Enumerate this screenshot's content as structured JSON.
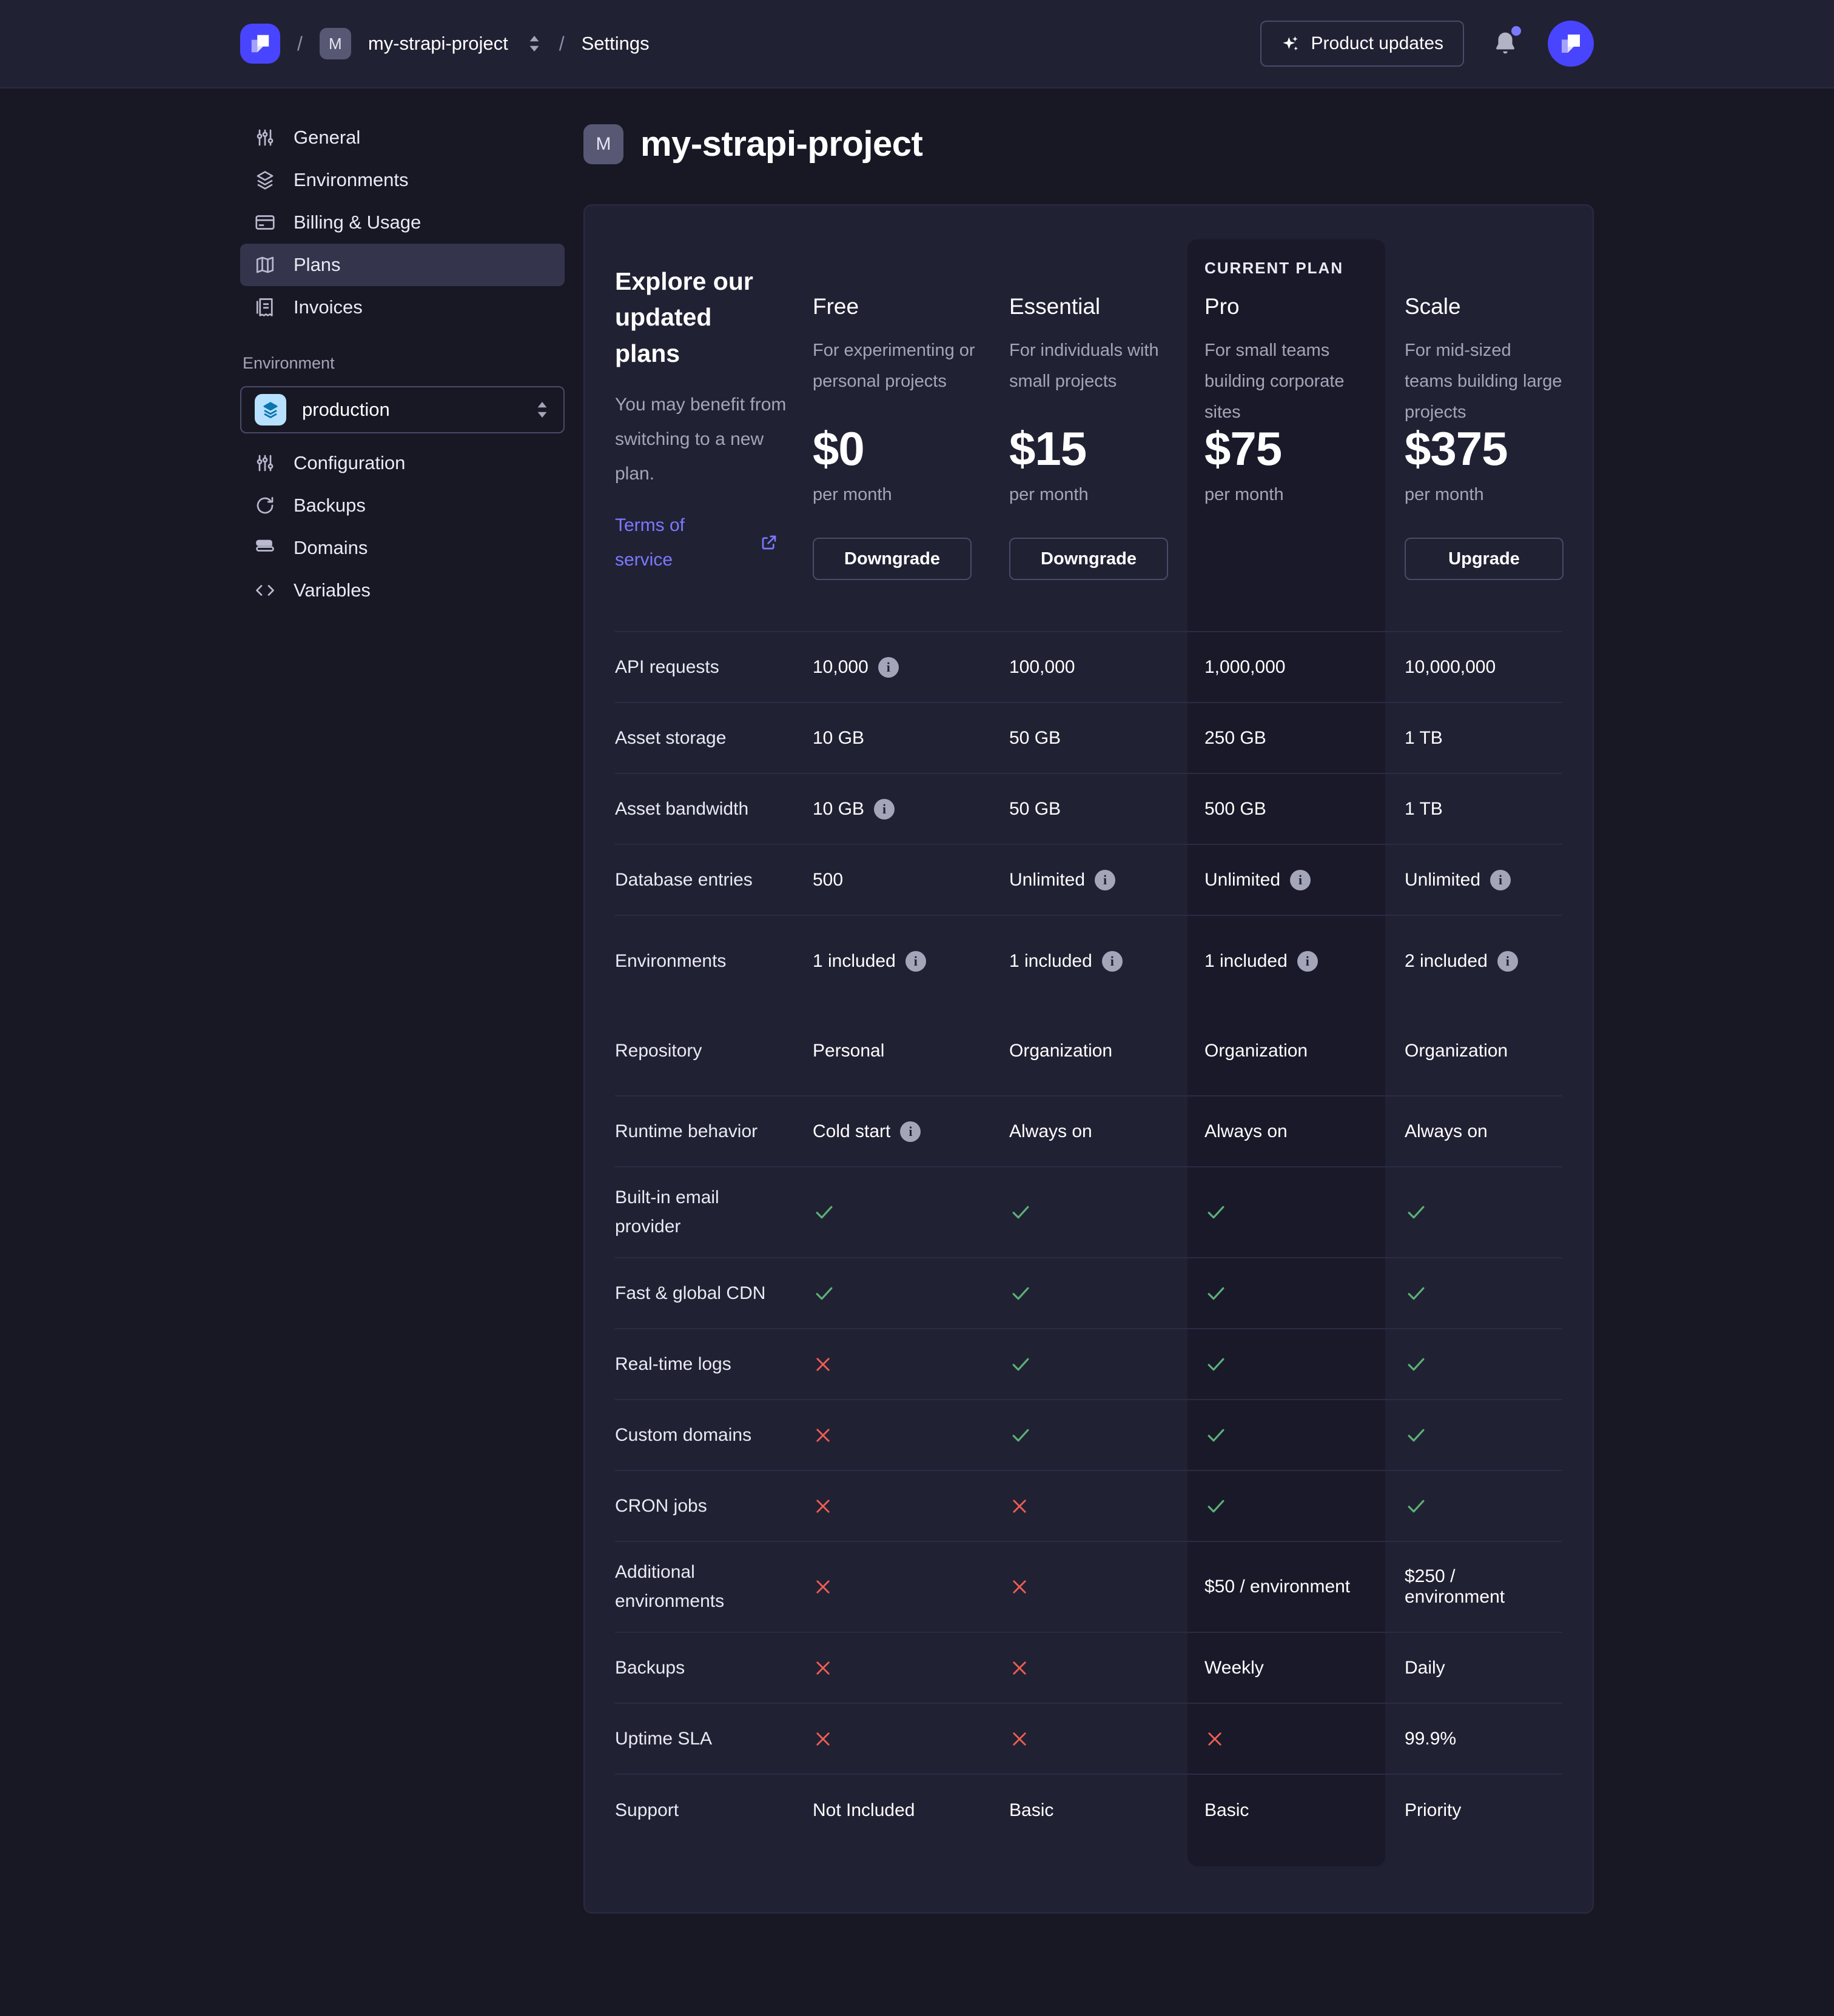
{
  "topbar": {
    "breadcrumb": {
      "separator": "/",
      "project_initial": "M",
      "project": "my-strapi-project",
      "section": "Settings"
    },
    "product_updates_label": "Product updates"
  },
  "sidebar": {
    "items": [
      {
        "label": "General",
        "icon": "sliders"
      },
      {
        "label": "Environments",
        "icon": "layers"
      },
      {
        "label": "Billing & Usage",
        "icon": "credit-card"
      },
      {
        "label": "Plans",
        "icon": "map",
        "selected": true
      },
      {
        "label": "Invoices",
        "icon": "receipt"
      }
    ],
    "environment_section_label": "Environment",
    "environment_value": "production",
    "environment_items": [
      {
        "label": "Configuration",
        "icon": "sliders"
      },
      {
        "label": "Backups",
        "icon": "refresh"
      },
      {
        "label": "Domains",
        "icon": "drawer"
      },
      {
        "label": "Variables",
        "icon": "code"
      }
    ]
  },
  "page": {
    "title_initial": "M",
    "title": "my-strapi-project"
  },
  "plans_intro": {
    "heading": "Explore our updated plans",
    "body": "You may benefit from switching to a new plan.",
    "link_label": "Terms of service"
  },
  "plans": [
    {
      "name": "Free",
      "desc": "For experimenting or personal projects",
      "price": "$0",
      "period": "per month",
      "button": "Downgrade"
    },
    {
      "name": "Essential",
      "desc": "For individuals with small projects",
      "price": "$15",
      "period": "per month",
      "button": "Downgrade"
    },
    {
      "name": "Pro",
      "desc": "For small teams building corporate sites",
      "price": "$75",
      "period": "per month",
      "badge": "CURRENT PLAN",
      "current": true
    },
    {
      "name": "Scale",
      "desc": "For mid-sized teams building large projects",
      "price": "$375",
      "period": "per month",
      "button": "Upgrade"
    }
  ],
  "table": {
    "rows": [
      {
        "label": "API requests",
        "cells": [
          {
            "t": "10,000",
            "i": true
          },
          {
            "t": "100,000"
          },
          {
            "t": "1,000,000"
          },
          {
            "t": "10,000,000"
          }
        ]
      },
      {
        "label": "Asset storage",
        "cells": [
          {
            "t": "10 GB"
          },
          {
            "t": "50 GB"
          },
          {
            "t": "250 GB"
          },
          {
            "t": "1 TB"
          }
        ]
      },
      {
        "label": "Asset bandwidth",
        "cells": [
          {
            "t": "10 GB",
            "i": true
          },
          {
            "t": "50 GB"
          },
          {
            "t": "500 GB"
          },
          {
            "t": "1 TB"
          }
        ]
      },
      {
        "label": "Database entries",
        "cells": [
          {
            "t": "500"
          },
          {
            "t": "Unlimited",
            "i": true
          },
          {
            "t": "Unlimited",
            "i": true
          },
          {
            "t": "Unlimited",
            "i": true
          }
        ]
      },
      {
        "label": "Environments",
        "cls": "tall nodiv",
        "cells": [
          {
            "t": "1 included",
            "i": true
          },
          {
            "t": "1 included",
            "i": true
          },
          {
            "t": "1 included",
            "i": true
          },
          {
            "t": "2 included",
            "i": true
          }
        ]
      },
      {
        "label": "Repository",
        "cls": "xtall",
        "cells": [
          {
            "t": "Personal"
          },
          {
            "t": "Organization"
          },
          {
            "t": "Organization"
          },
          {
            "t": "Organization"
          }
        ]
      },
      {
        "label": "Runtime behavior",
        "cells": [
          {
            "t": "Cold start",
            "i": true
          },
          {
            "t": "Always on"
          },
          {
            "t": "Always on"
          },
          {
            "t": "Always on"
          }
        ]
      },
      {
        "label": "Built-in email provider",
        "cls": "tall",
        "cells": [
          {
            "c": true
          },
          {
            "c": true
          },
          {
            "c": true
          },
          {
            "c": true
          }
        ]
      },
      {
        "label": "Fast & global CDN",
        "cells": [
          {
            "c": true
          },
          {
            "c": true
          },
          {
            "c": true
          },
          {
            "c": true
          }
        ]
      },
      {
        "label": "Real-time logs",
        "cells": [
          {
            "x": true
          },
          {
            "c": true
          },
          {
            "c": true
          },
          {
            "c": true
          }
        ]
      },
      {
        "label": "Custom domains",
        "cells": [
          {
            "x": true
          },
          {
            "c": true
          },
          {
            "c": true
          },
          {
            "c": true
          }
        ]
      },
      {
        "label": "CRON jobs",
        "cells": [
          {
            "x": true
          },
          {
            "x": true
          },
          {
            "c": true
          },
          {
            "c": true
          }
        ]
      },
      {
        "label": "Additional environments",
        "cls": "tall",
        "cells": [
          {
            "x": true
          },
          {
            "x": true
          },
          {
            "t": "$50 / environment"
          },
          {
            "t": "$250 / environment"
          }
        ]
      },
      {
        "label": "Backups",
        "cells": [
          {
            "x": true
          },
          {
            "x": true
          },
          {
            "t": "Weekly"
          },
          {
            "t": "Daily"
          }
        ]
      },
      {
        "label": "Uptime SLA",
        "cells": [
          {
            "x": true
          },
          {
            "x": true
          },
          {
            "x": true
          },
          {
            "t": "99.9%"
          }
        ]
      },
      {
        "label": "Support",
        "cls": "nodiv",
        "cells": [
          {
            "t": "Not Included"
          },
          {
            "t": "Basic"
          },
          {
            "t": "Basic"
          },
          {
            "t": "Priority"
          }
        ]
      }
    ]
  },
  "colors": {
    "brand_purple": "#4945ff",
    "link_purple": "#7b79ff",
    "success_green": "#5cb176",
    "danger_red": "#ee5e52",
    "page_background": "#171824",
    "panel_background": "#212134",
    "current_plan_panel": "#191929"
  }
}
